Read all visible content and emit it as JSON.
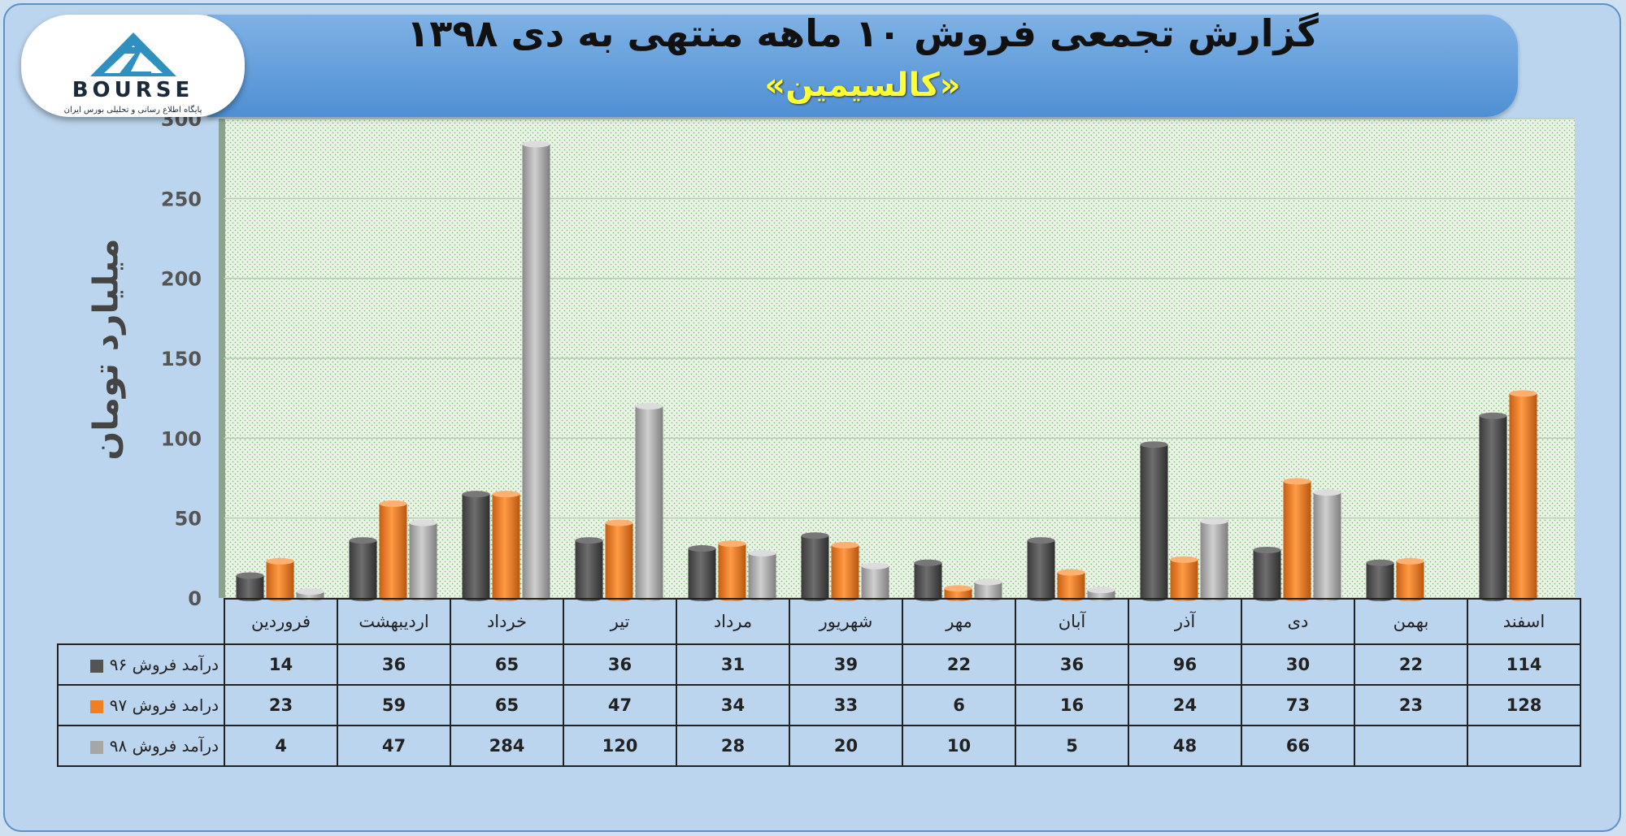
{
  "header": {
    "title": "گزارش تجمعی فروش ۱۰ ماهه منتهی به دی ۱۳۹۸",
    "subtitle": "«کالسیمین»"
  },
  "logo": {
    "text": "BOURSE",
    "tagline": "پایگاه اطلاع رسانی و تحلیلی بورس ایران"
  },
  "colors": {
    "series96": "#545454",
    "series97": "#f07f24",
    "series98": "#a6a6a6",
    "plot_bg": "#eaf4e6",
    "dots": "#82c07a"
  },
  "chart_data": {
    "type": "bar",
    "ylabel": "میلیارد تومان",
    "ylim": [
      0,
      300
    ],
    "yticks": [
      0,
      50,
      100,
      150,
      200,
      250,
      300
    ],
    "categories": [
      "اسفند",
      "بهمن",
      "دی",
      "آذر",
      "آبان",
      "مهر",
      "شهریور",
      "مرداد",
      "تیر",
      "خرداد",
      "اردیبهشت",
      "فروردین"
    ],
    "series": [
      {
        "name": "درآمد فروش ۹۶",
        "values": [
          114,
          22,
          30,
          96,
          36,
          22,
          39,
          31,
          36,
          65,
          36,
          14
        ]
      },
      {
        "name": "درامد فروش ۹۷",
        "values": [
          128,
          23,
          73,
          24,
          16,
          6,
          33,
          34,
          47,
          65,
          59,
          23
        ]
      },
      {
        "name": "درآمد فروش ۹۸",
        "values": [
          null,
          null,
          66,
          48,
          5,
          10,
          20,
          28,
          120,
          284,
          47,
          4
        ]
      }
    ],
    "grid": true,
    "legend": "table"
  }
}
